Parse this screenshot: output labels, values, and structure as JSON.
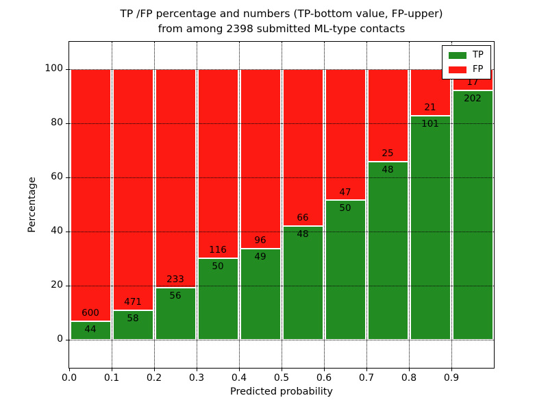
{
  "figure": {
    "title_line1": "TP /FP percentage and numbers (TP-bottom value, FP-upper)",
    "title_line2": "from among 2398 submitted ML-type contacts"
  },
  "chart_data": {
    "type": "bar",
    "subtype": "stacked-percentage-with-count-labels",
    "title": "TP /FP percentage and numbers (TP-bottom value, FP-upper)\nfrom among 2398 submitted ML-type contacts",
    "xlabel": "Predicted probability",
    "ylabel": "Percentage",
    "total_contacts": 2398,
    "bin_width": 0.1,
    "bin_starts": [
      0.0,
      0.1,
      0.2,
      0.3,
      0.4,
      0.5,
      0.6,
      0.7,
      0.8,
      0.9
    ],
    "series": [
      {
        "name": "TP",
        "color": "#228b22",
        "values": [
          44,
          58,
          56,
          50,
          49,
          48,
          50,
          48,
          101,
          202
        ]
      },
      {
        "name": "FP",
        "color": "#fc1a13",
        "values": [
          600,
          471,
          233,
          116,
          96,
          66,
          47,
          25,
          21,
          17
        ]
      }
    ],
    "tp_percent_of_bin": [
      6.8,
      11.0,
      19.4,
      30.1,
      33.8,
      42.1,
      51.5,
      65.8,
      82.8,
      92.2
    ],
    "xtick_labels": [
      "0.0",
      "0.1",
      "0.2",
      "0.3",
      "0.4",
      "0.5",
      "0.6",
      "0.7",
      "0.8",
      "0.9"
    ],
    "xtick_values": [
      0.0,
      0.1,
      0.2,
      0.3,
      0.4,
      0.5,
      0.6,
      0.7,
      0.8,
      0.9
    ],
    "ytick_values": [
      0,
      20,
      40,
      60,
      80,
      100
    ],
    "xlim": [
      0.0,
      1.0
    ],
    "ylim": [
      -10.3,
      110.1
    ],
    "grid": true,
    "grid_style": "dotted",
    "legend": {
      "position": "upper right",
      "entries": [
        {
          "label": "TP",
          "color": "#228b22"
        },
        {
          "label": "FP",
          "color": "#fc1a13"
        }
      ]
    }
  }
}
